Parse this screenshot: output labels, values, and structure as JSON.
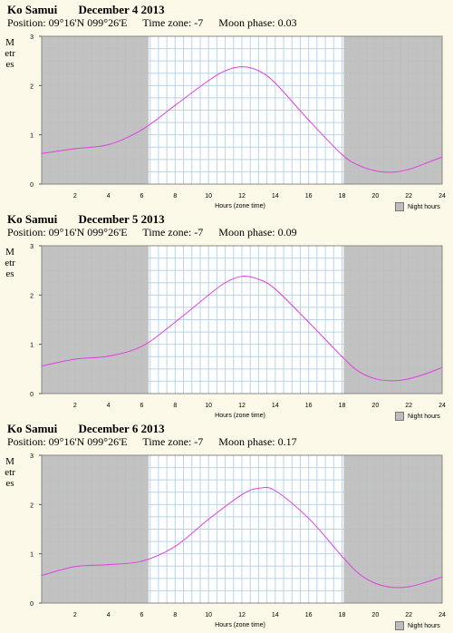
{
  "panels": [
    {
      "place": "Ko Samui",
      "date": "December 4 2013",
      "position": "Position: 09°16'N 099°26'E",
      "timezone": "Time zone: -7",
      "moon": "Moon phase: 0.03",
      "ylabel": "Metres",
      "xlabel": "Hours (zone time)",
      "legend": "Night hours"
    },
    {
      "place": "Ko Samui",
      "date": "December 5 2013",
      "position": "Position: 09°16'N 099°26'E",
      "timezone": "Time zone: -7",
      "moon": "Moon phase: 0.09",
      "ylabel": "Metres",
      "xlabel": "Hours (zone time)",
      "legend": "Night hours"
    },
    {
      "place": "Ko Samui",
      "date": "December 6 2013",
      "position": "Position: 09°16'N 099°26'E",
      "timezone": "Time zone: -7",
      "moon": "Moon phase: 0.17",
      "ylabel": "Metres",
      "xlabel": "Hours (zone time)",
      "legend": "Night hours"
    }
  ],
  "colors": {
    "night": "#bdbdbd",
    "grid": "#b8d4ec",
    "tide": "#e040e0",
    "day": "#ffffff"
  },
  "chart_data": [
    {
      "type": "line",
      "title": "Ko Samui December 4 2013",
      "xlabel": "Hours (zone time)",
      "ylabel": "Metres",
      "xlim": [
        0,
        24
      ],
      "ylim": [
        0,
        3
      ],
      "xticks": [
        "2",
        "4",
        "6",
        "8",
        "10",
        "12",
        "14",
        "16",
        "18",
        "20",
        "22",
        "24"
      ],
      "yticks": [
        "0",
        "1",
        "2",
        "3"
      ],
      "night_hours": [
        [
          0,
          6.4
        ],
        [
          18.1,
          24
        ]
      ],
      "series": [
        {
          "x": [
            0,
            2,
            4,
            6,
            8,
            10,
            11,
            12,
            13,
            14,
            16,
            18,
            19,
            20,
            21,
            22,
            23,
            24
          ],
          "y": [
            0.62,
            0.72,
            0.8,
            1.1,
            1.6,
            2.1,
            2.3,
            2.38,
            2.3,
            2.05,
            1.3,
            0.6,
            0.38,
            0.27,
            0.24,
            0.3,
            0.42,
            0.55
          ]
        }
      ]
    },
    {
      "type": "line",
      "title": "Ko Samui December 5 2013",
      "xlabel": "Hours (zone time)",
      "ylabel": "Metres",
      "xlim": [
        0,
        24
      ],
      "ylim": [
        0,
        3
      ],
      "xticks": [
        "2",
        "4",
        "6",
        "8",
        "10",
        "12",
        "14",
        "16",
        "18",
        "20",
        "22",
        "24"
      ],
      "yticks": [
        "0",
        "1",
        "2",
        "3"
      ],
      "night_hours": [
        [
          0,
          6.4
        ],
        [
          18.1,
          24
        ]
      ],
      "series": [
        {
          "x": [
            0,
            2,
            4,
            6,
            8,
            10,
            11,
            12,
            13,
            14,
            16,
            18,
            19,
            20,
            21,
            22,
            23,
            24
          ],
          "y": [
            0.56,
            0.7,
            0.76,
            0.96,
            1.45,
            2.0,
            2.25,
            2.38,
            2.32,
            2.12,
            1.45,
            0.75,
            0.45,
            0.3,
            0.26,
            0.3,
            0.4,
            0.53
          ]
        }
      ]
    },
    {
      "type": "line",
      "title": "Ko Samui December 6 2013",
      "xlabel": "Hours (zone time)",
      "ylabel": "Metres",
      "xlim": [
        0,
        24
      ],
      "ylim": [
        0,
        3
      ],
      "xticks": [
        "2",
        "4",
        "6",
        "8",
        "10",
        "12",
        "14",
        "16",
        "18",
        "20",
        "22",
        "24"
      ],
      "yticks": [
        "0",
        "1",
        "2",
        "3"
      ],
      "night_hours": [
        [
          0,
          6.4
        ],
        [
          18.1,
          24
        ]
      ],
      "series": [
        {
          "x": [
            0,
            2,
            4,
            6,
            8,
            10,
            12,
            13,
            14,
            16,
            18,
            19,
            20,
            21,
            22,
            23,
            24
          ],
          "y": [
            0.56,
            0.74,
            0.78,
            0.85,
            1.15,
            1.7,
            2.2,
            2.33,
            2.28,
            1.72,
            0.95,
            0.6,
            0.4,
            0.32,
            0.33,
            0.42,
            0.53
          ]
        }
      ]
    }
  ]
}
